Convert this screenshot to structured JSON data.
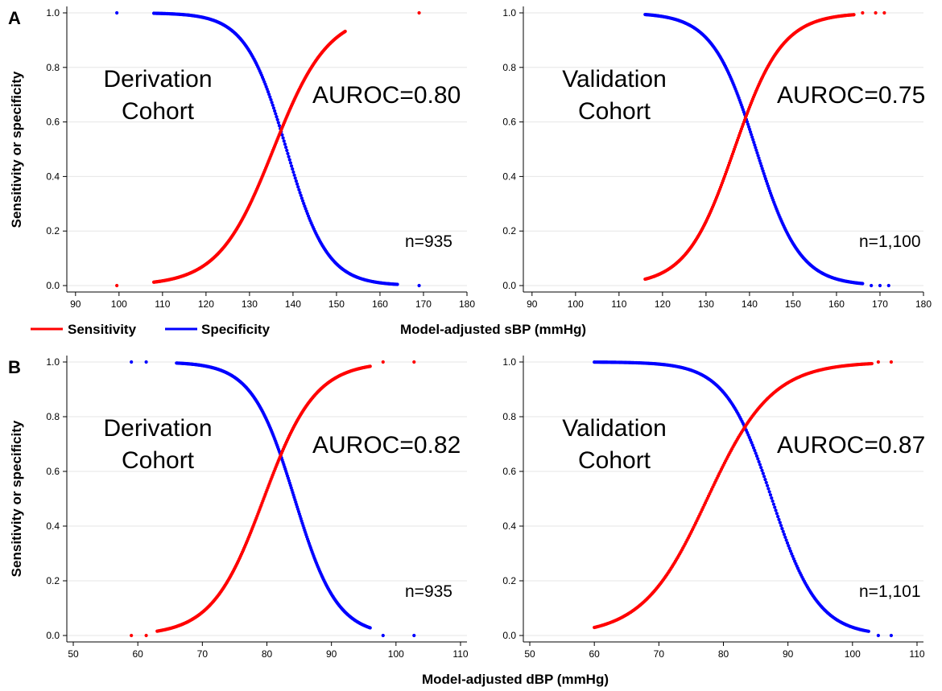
{
  "figure": {
    "panel_labels": [
      "A",
      "B"
    ],
    "y_axis_label": "Sensitivity or specificity",
    "x_axis_label_row_a": "Model-adjusted sBP (mmHg)",
    "x_axis_label_row_b": "Model-adjusted dBP (mmHg)",
    "legend": {
      "placement": "between-rows-left",
      "items": [
        {
          "label": "Sensitivity",
          "color": "#ff0000"
        },
        {
          "label": "Specificity",
          "color": "#0000ff"
        }
      ]
    },
    "colors": {
      "sensitivity": "#ff0000",
      "specificity": "#0000ff",
      "grid": "#e6e6e6"
    }
  },
  "chart_data": [
    {
      "type": "scatter",
      "cohort_line1": "Derivation",
      "cohort_line2": "Cohort",
      "auroc_label": "AUROC=0.80",
      "n_label": "n=935",
      "xlim": [
        88,
        180
      ],
      "ylim": [
        0,
        1
      ],
      "xticks": [
        90,
        100,
        110,
        120,
        130,
        140,
        150,
        160,
        170,
        180
      ],
      "yticks": [
        0.0,
        0.2,
        0.4,
        0.6,
        0.8,
        1.0
      ],
      "grid": true,
      "sensitivity": {
        "start": 108,
        "end": 152,
        "mid": 135.5,
        "scale": 6.3,
        "outliers_low": [
          [
            99.5,
            0
          ]
        ],
        "outliers_high": [
          [
            169,
            1
          ]
        ]
      },
      "specificity": {
        "start": 108,
        "end": 164,
        "mid": 138.5,
        "scale": 4.7,
        "outliers_low": [
          [
            169,
            0
          ]
        ],
        "outliers_high": [
          [
            99.5,
            1
          ]
        ]
      }
    },
    {
      "type": "scatter",
      "cohort_line1": "Validation",
      "cohort_line2": "Cohort",
      "auroc_label": "AUROC=0.75",
      "n_label": "n=1,100",
      "xlim": [
        88,
        180
      ],
      "ylim": [
        0,
        1
      ],
      "xticks": [
        90,
        100,
        110,
        120,
        130,
        140,
        150,
        160,
        170,
        180
      ],
      "yticks": [
        0.0,
        0.2,
        0.4,
        0.6,
        0.8,
        1.0
      ],
      "grid": true,
      "sensitivity": {
        "start": 116,
        "end": 164,
        "mid": 136.5,
        "scale": 5.5,
        "outliers_low": [],
        "outliers_high": [
          [
            166,
            1
          ],
          [
            169,
            1
          ],
          [
            171,
            1
          ]
        ]
      },
      "specificity": {
        "start": 116,
        "end": 166,
        "mid": 141.5,
        "scale": 5.0,
        "outliers_low": [
          [
            168,
            0
          ],
          [
            170,
            0
          ],
          [
            172,
            0
          ]
        ],
        "outliers_high": []
      }
    },
    {
      "type": "scatter",
      "cohort_line1": "Derivation",
      "cohort_line2": "Cohort",
      "auroc_label": "AUROC=0.82",
      "n_label": "n=935",
      "xlim": [
        49,
        111
      ],
      "ylim": [
        0,
        1
      ],
      "xticks": [
        50,
        60,
        70,
        80,
        90,
        100,
        110
      ],
      "yticks": [
        0.0,
        0.2,
        0.4,
        0.6,
        0.8,
        1.0
      ],
      "grid": true,
      "sensitivity": {
        "start": 63,
        "end": 96,
        "mid": 79.5,
        "scale": 4.0,
        "outliers_low": [
          [
            59,
            0
          ],
          [
            61.3,
            0
          ]
        ],
        "outliers_high": [
          [
            98,
            1
          ],
          [
            102.8,
            1
          ]
        ]
      },
      "specificity": {
        "start": 66,
        "end": 96,
        "mid": 84.3,
        "scale": 3.3,
        "outliers_low": [
          [
            98,
            0
          ],
          [
            102.8,
            0
          ]
        ],
        "outliers_high": [
          [
            59,
            1
          ],
          [
            61.3,
            1
          ]
        ]
      }
    },
    {
      "type": "scatter",
      "cohort_line1": "Validation",
      "cohort_line2": "Cohort",
      "auroc_label": "AUROC=0.87",
      "n_label": "n=1,101",
      "xlim": [
        49,
        111
      ],
      "ylim": [
        0,
        1
      ],
      "xticks": [
        50,
        60,
        70,
        80,
        90,
        100,
        110
      ],
      "yticks": [
        0.0,
        0.2,
        0.4,
        0.6,
        0.8,
        1.0
      ],
      "grid": true,
      "sensitivity": {
        "start": 60,
        "end": 103,
        "mid": 77.5,
        "scale": 5.0,
        "outliers_low": [],
        "outliers_high": [
          [
            104,
            1
          ],
          [
            106,
            1
          ]
        ]
      },
      "specificity": {
        "start": 60,
        "end": 102.5,
        "mid": 87.5,
        "scale": 3.6,
        "outliers_low": [
          [
            104,
            0
          ],
          [
            106,
            0
          ]
        ],
        "outliers_high": []
      }
    }
  ]
}
